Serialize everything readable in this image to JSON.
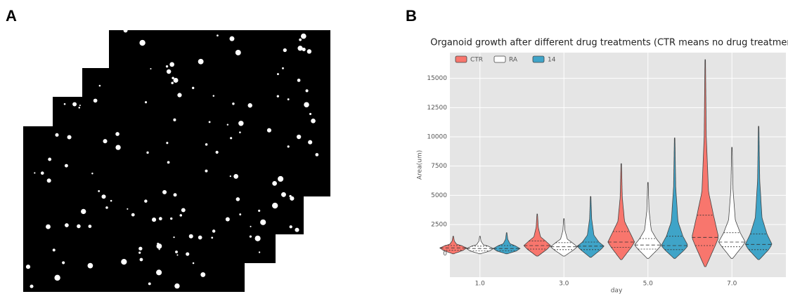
{
  "panels": {
    "a": "A",
    "b": "B"
  },
  "chart_data": {
    "type": "violin",
    "title": "Organoid growth after different drug treatments (CTR means no drug treatment)",
    "x_label": "day",
    "y_label": "Area(um)",
    "categories": [
      "1.0",
      "3.0",
      "5.0",
      "7.0"
    ],
    "ylim": [
      -2000,
      17200
    ],
    "yticks": [
      0,
      2500,
      5000,
      7500,
      10000,
      12500,
      15000
    ],
    "grid": true,
    "legend": "top-left",
    "series": [
      {
        "name": "CTR",
        "color": "#f8766d",
        "min": [
          0,
          -200,
          -500,
          -1100
        ],
        "q1": [
          300,
          400,
          550,
          700
        ],
        "median": [
          500,
          700,
          1000,
          1400
        ],
        "q3": [
          700,
          1100,
          1900,
          3300
        ],
        "max": [
          1500,
          3400,
          7700,
          16600
        ]
      },
      {
        "name": "RA",
        "color": "#ffffff",
        "min": [
          0,
          -200,
          -400,
          -400
        ],
        "q1": [
          250,
          350,
          400,
          600
        ],
        "median": [
          450,
          600,
          750,
          1000
        ],
        "q3": [
          650,
          950,
          1300,
          1800
        ],
        "max": [
          1500,
          3000,
          6100,
          9100
        ]
      },
      {
        "name": "14",
        "color": "#3fa4c8",
        "min": [
          0,
          -300,
          -400,
          -500
        ],
        "q1": [
          250,
          350,
          350,
          350
        ],
        "median": [
          450,
          650,
          700,
          800
        ],
        "q3": [
          700,
          1000,
          1500,
          1700
        ],
        "max": [
          1800,
          4900,
          9900,
          10900
        ]
      }
    ]
  }
}
